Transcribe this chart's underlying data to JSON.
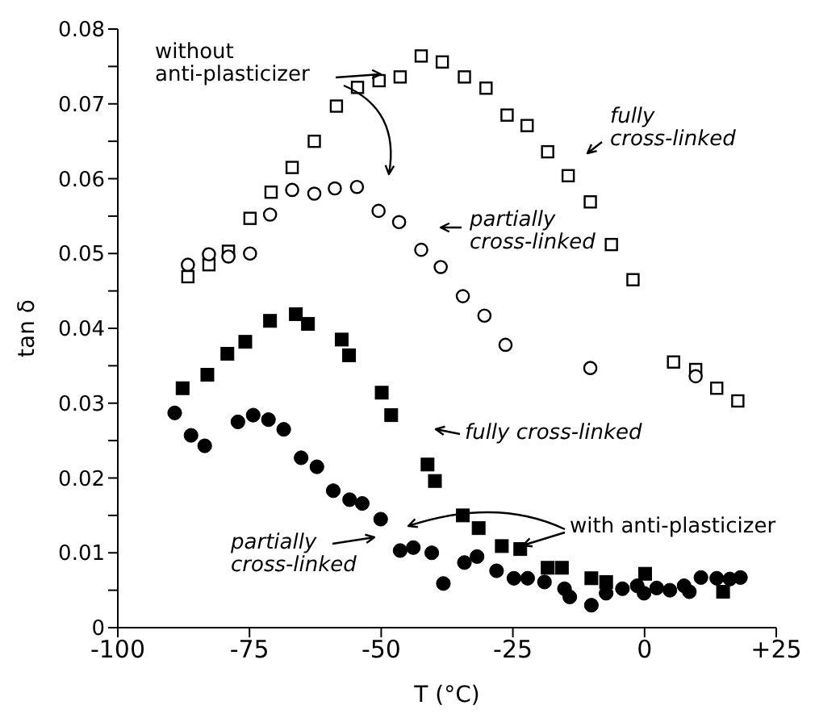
{
  "chart_data": {
    "type": "scatter",
    "xlabel": "T (°C)",
    "ylabel": "tan δ",
    "xlim": [
      -100,
      25
    ],
    "xticks": [
      -100,
      -75,
      -50,
      -25,
      0,
      {
        "value": 25,
        "label": "+25"
      }
    ],
    "ylim": [
      0,
      0.08
    ],
    "yticks": [
      0,
      {
        "value": 0.005,
        "label": null
      },
      0.01,
      {
        "value": 0.015,
        "label": null
      },
      0.02,
      {
        "value": 0.025,
        "label": null
      },
      0.03,
      {
        "value": 0.035,
        "label": null
      },
      0.04,
      {
        "value": 0.045,
        "label": null
      },
      0.05,
      {
        "value": 0.055,
        "label": null
      },
      0.06,
      {
        "value": 0.065,
        "label": null
      },
      0.07,
      {
        "value": 0.075,
        "label": null
      },
      0.08
    ],
    "grid": false,
    "legend": false,
    "annotations": [
      "without\nanti-plasticizer",
      "fully\ncross-linked",
      "partially\ncross-linked",
      "fully cross-linked",
      "partially\ncross-linked",
      "with anti-plasticizer"
    ],
    "series": [
      {
        "color": "#ffffff",
        "marker": "square",
        "x": [
          -86.7,
          -82.7,
          -79.0,
          -74.9,
          -70.9,
          -66.9,
          -62.7,
          -58.5,
          -54.5,
          -50.4,
          -46.4,
          -42.4,
          -38.4,
          -34.2,
          -30.1,
          -26.1,
          -22.3,
          -18.4,
          -14.5,
          -10.3,
          -6.3,
          -2.2,
          5.5,
          9.7,
          13.7,
          17.7
        ],
        "values": [
          0.0469,
          0.0485,
          0.0503,
          0.0547,
          0.0582,
          0.0615,
          0.065,
          0.0697,
          0.0722,
          0.0731,
          0.0736,
          0.0764,
          0.0756,
          0.0736,
          0.0721,
          0.0685,
          0.0671,
          0.0636,
          0.0604,
          0.0569,
          0.0512,
          0.0465,
          0.0355,
          0.0345,
          0.032,
          0.0303
        ]
      },
      {
        "color": "#ffffff",
        "marker": "circle",
        "x": [
          -86.7,
          -82.7,
          -79.0,
          -74.9,
          -71.1,
          -66.9,
          -62.7,
          -58.8,
          -54.6,
          -50.5,
          -46.6,
          -42.4,
          -38.7,
          -34.5,
          -30.4,
          -26.4,
          -10.3,
          9.7
        ],
        "values": [
          0.0485,
          0.0499,
          0.0496,
          0.05,
          0.0552,
          0.0585,
          0.058,
          0.0587,
          0.0589,
          0.0557,
          0.0542,
          0.0505,
          0.0482,
          0.0443,
          0.0417,
          0.0378,
          0.0347,
          0.0336
        ]
      },
      {
        "color": "#000000",
        "marker": "square",
        "x": [
          -87.7,
          -83.0,
          -79.2,
          -75.8,
          -71.1,
          -66.2,
          -63.9,
          -57.5,
          -56.1,
          -49.9,
          -48.1,
          -41.2,
          -39.8,
          -34.5,
          -31.5,
          -27.1,
          -23.6,
          -18.4,
          -15.7,
          -10.1,
          -7.3,
          0.1,
          14.9
        ],
        "values": [
          0.032,
          0.0338,
          0.0366,
          0.0382,
          0.041,
          0.0419,
          0.0406,
          0.0385,
          0.0364,
          0.0314,
          0.0284,
          0.0218,
          0.0196,
          0.015,
          0.0133,
          0.0109,
          0.0105,
          0.008,
          0.008,
          0.0066,
          0.0061,
          0.0072,
          0.0048
        ]
      },
      {
        "color": "#000000",
        "marker": "circle",
        "x": [
          -89.2,
          -86.1,
          -83.5,
          -77.2,
          -74.3,
          -71.4,
          -68.5,
          -65.2,
          -62.2,
          -59.1,
          -56.0,
          -53.6,
          -50.1,
          -46.4,
          -43.9,
          -40.4,
          -38.2,
          -34.2,
          -31.8,
          -28.1,
          -24.8,
          -22.2,
          -19.0,
          -15.2,
          -14.2,
          -10.1,
          -7.3,
          -4.2,
          -1.4,
          -0.1,
          2.3,
          4.8,
          7.5,
          8.5,
          10.7,
          13.7,
          16.2,
          18.2
        ],
        "values": [
          0.0287,
          0.0257,
          0.0243,
          0.0275,
          0.0284,
          0.0278,
          0.0265,
          0.0227,
          0.0215,
          0.0183,
          0.0171,
          0.0166,
          0.0145,
          0.0103,
          0.0107,
          0.01,
          0.0059,
          0.0087,
          0.0095,
          0.0076,
          0.0066,
          0.0066,
          0.0061,
          0.0052,
          0.0041,
          0.003,
          0.0046,
          0.0052,
          0.0056,
          0.0046,
          0.0053,
          0.005,
          0.0056,
          0.0048,
          0.0067,
          0.0066,
          0.0065,
          0.0067
        ]
      }
    ]
  }
}
